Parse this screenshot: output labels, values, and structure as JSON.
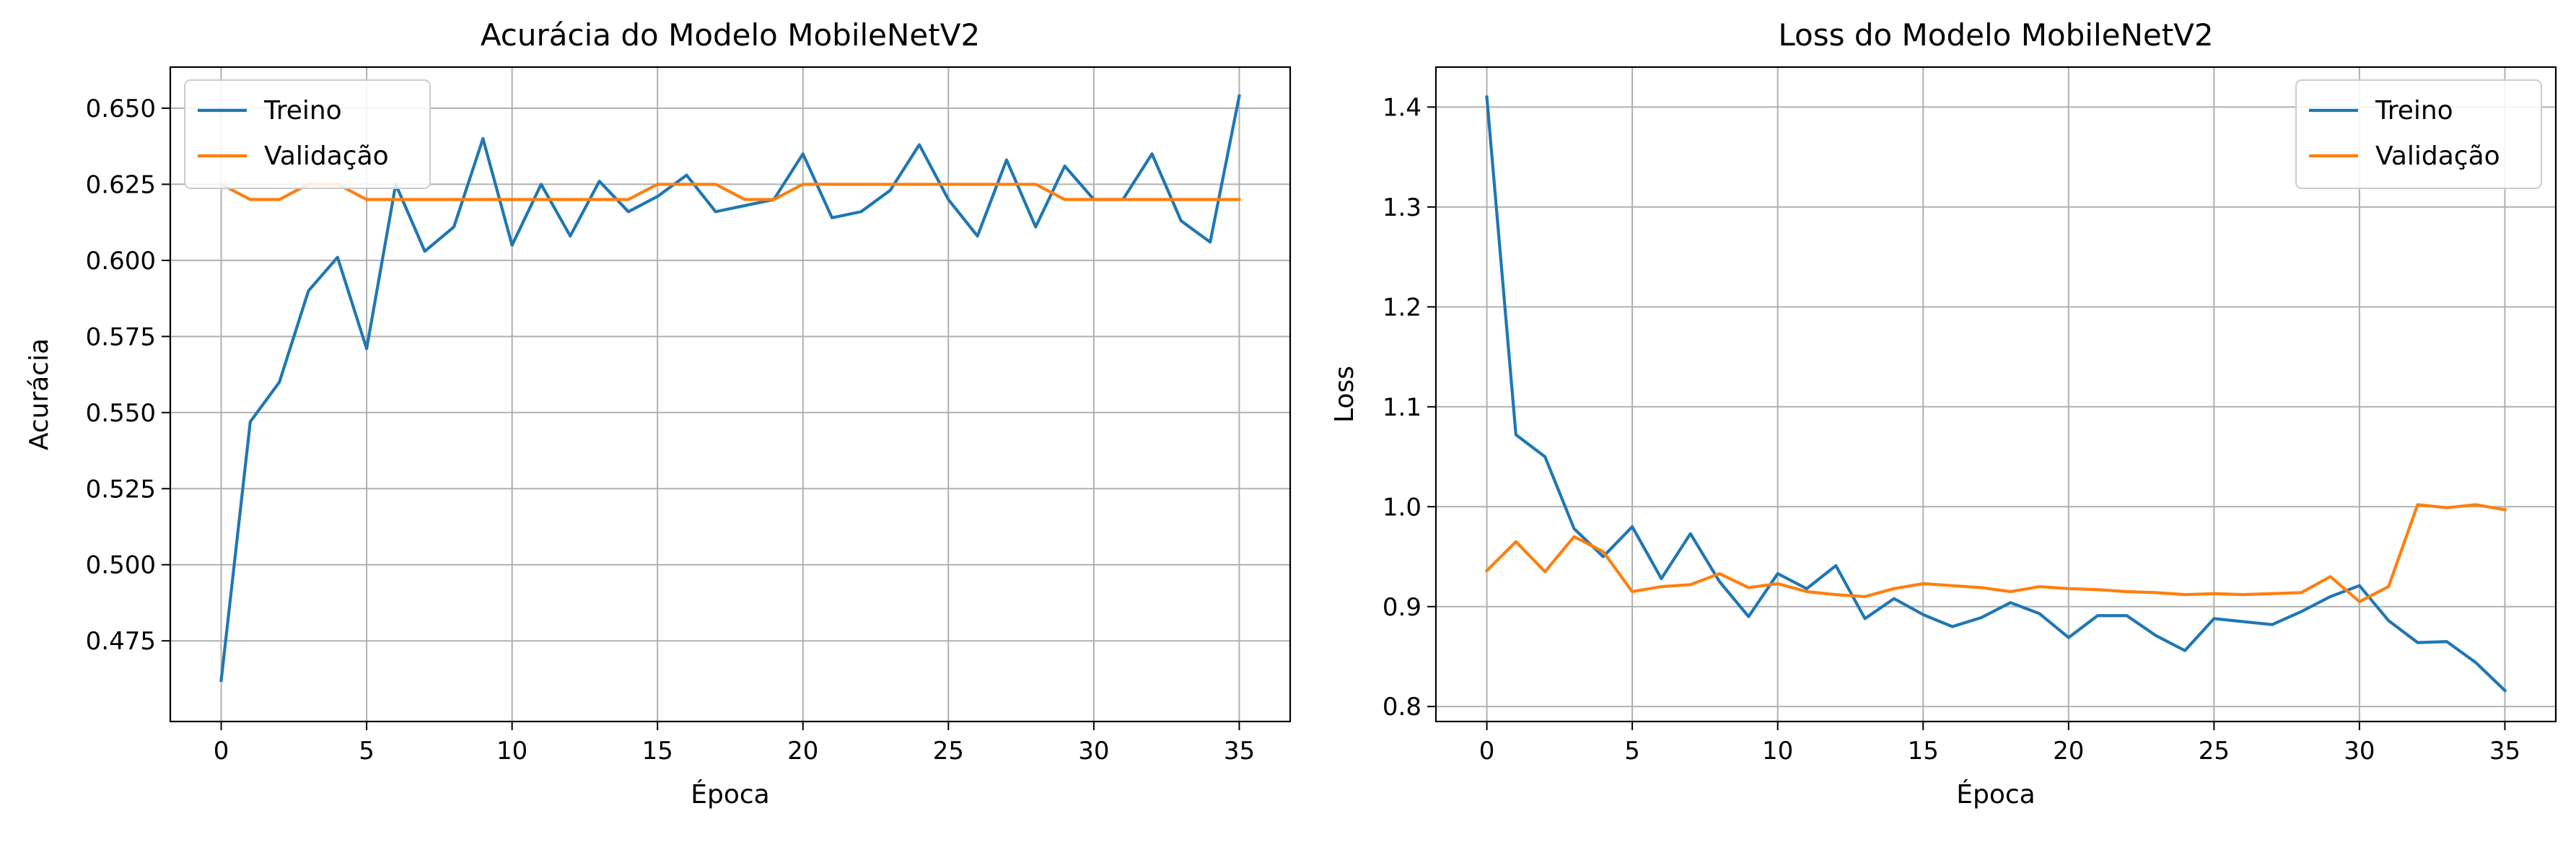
{
  "chart_data": [
    {
      "type": "line",
      "title": "Acurácia do Modelo MobileNetV2",
      "xlabel": "Época",
      "ylabel": "Acurácia",
      "xlim": [
        -1.75,
        36.75
      ],
      "ylim": [
        0.4485,
        0.6635
      ],
      "xticks": [
        0,
        5,
        10,
        15,
        20,
        25,
        30,
        35
      ],
      "yticks": [
        0.475,
        0.5,
        0.525,
        0.55,
        0.575,
        0.6,
        0.625,
        0.65
      ],
      "ytick_labels": [
        "0.475",
        "0.500",
        "0.525",
        "0.550",
        "0.575",
        "0.600",
        "0.625",
        "0.650"
      ],
      "grid": true,
      "legend_position": "top-left",
      "x": [
        0,
        1,
        2,
        3,
        4,
        5,
        6,
        7,
        8,
        9,
        10,
        11,
        12,
        13,
        14,
        15,
        16,
        17,
        18,
        19,
        20,
        21,
        22,
        23,
        24,
        25,
        26,
        27,
        28,
        29,
        30,
        31,
        32,
        33,
        34,
        35
      ],
      "series": [
        {
          "name": "Treino",
          "color": "#1f77b4",
          "values": [
            0.462,
            0.547,
            0.56,
            0.59,
            0.601,
            0.571,
            0.625,
            0.603,
            0.611,
            0.64,
            0.605,
            0.625,
            0.608,
            0.626,
            0.616,
            0.621,
            0.628,
            0.616,
            0.618,
            0.62,
            0.635,
            0.614,
            0.616,
            0.623,
            0.638,
            0.62,
            0.608,
            0.633,
            0.611,
            0.631,
            0.62,
            0.62,
            0.635,
            0.613,
            0.606,
            0.654
          ]
        },
        {
          "name": "Validação",
          "color": "#ff7f0e",
          "values": [
            0.625,
            0.62,
            0.62,
            0.625,
            0.625,
            0.62,
            0.62,
            0.62,
            0.62,
            0.62,
            0.62,
            0.62,
            0.62,
            0.62,
            0.62,
            0.625,
            0.625,
            0.625,
            0.62,
            0.62,
            0.625,
            0.625,
            0.625,
            0.625,
            0.625,
            0.625,
            0.625,
            0.625,
            0.625,
            0.62,
            0.62,
            0.62,
            0.62,
            0.62,
            0.62,
            0.62
          ]
        }
      ]
    },
    {
      "type": "line",
      "title": "Loss do Modelo MobileNetV2",
      "xlabel": "Época",
      "ylabel": "Loss",
      "xlim": [
        -1.75,
        36.75
      ],
      "ylim": [
        0.785,
        1.44
      ],
      "xticks": [
        0,
        5,
        10,
        15,
        20,
        25,
        30,
        35
      ],
      "yticks": [
        0.8,
        0.9,
        1.0,
        1.1,
        1.2,
        1.3,
        1.4
      ],
      "ytick_labels": [
        "0.8",
        "0.9",
        "1.0",
        "1.1",
        "1.2",
        "1.3",
        "1.4"
      ],
      "grid": true,
      "legend_position": "top-right",
      "x": [
        0,
        1,
        2,
        3,
        4,
        5,
        6,
        7,
        8,
        9,
        10,
        11,
        12,
        13,
        14,
        15,
        16,
        17,
        18,
        19,
        20,
        21,
        22,
        23,
        24,
        25,
        26,
        27,
        28,
        29,
        30,
        31,
        32,
        33,
        34,
        35
      ],
      "series": [
        {
          "name": "Treino",
          "color": "#1f77b4",
          "values": [
            1.41,
            1.072,
            1.05,
            0.978,
            0.95,
            0.98,
            0.928,
            0.973,
            0.925,
            0.89,
            0.933,
            0.918,
            0.941,
            0.888,
            0.908,
            0.892,
            0.88,
            0.889,
            0.904,
            0.893,
            0.869,
            0.891,
            0.891,
            0.871,
            0.856,
            0.888,
            0.885,
            0.882,
            0.895,
            0.91,
            0.921,
            0.886,
            0.864,
            0.865,
            0.844,
            0.816
          ]
        },
        {
          "name": "Validação",
          "color": "#ff7f0e",
          "values": [
            0.936,
            0.965,
            0.935,
            0.97,
            0.955,
            0.915,
            0.92,
            0.922,
            0.933,
            0.919,
            0.923,
            0.915,
            0.912,
            0.91,
            0.918,
            0.923,
            0.921,
            0.919,
            0.915,
            0.92,
            0.918,
            0.917,
            0.915,
            0.914,
            0.912,
            0.913,
            0.912,
            0.913,
            0.914,
            0.93,
            0.905,
            0.92,
            1.002,
            0.999,
            1.002,
            0.997
          ]
        }
      ]
    }
  ]
}
